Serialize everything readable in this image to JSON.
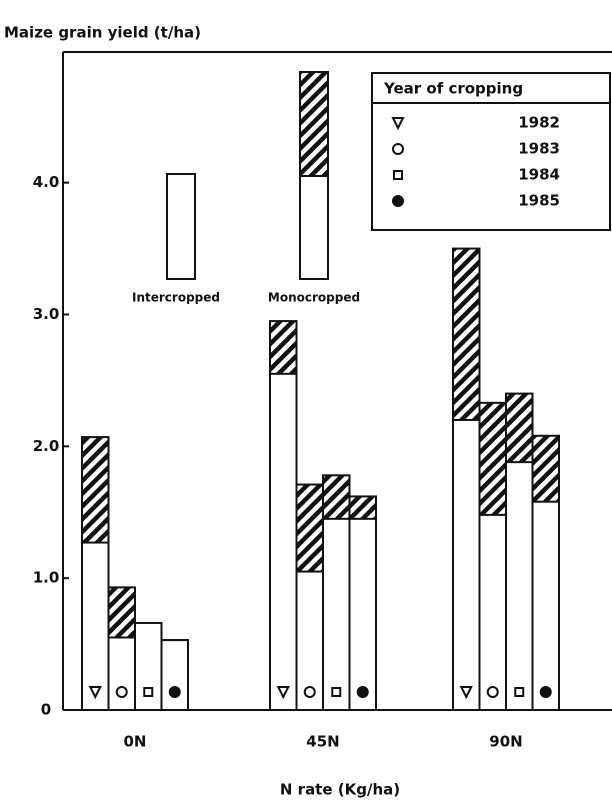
{
  "chart_data": {
    "type": "bar",
    "title": "Maize grain yield (t/ha)",
    "xlabel": "N rate (Kg/ha)",
    "categories": [
      "0N",
      "45N",
      "90N"
    ],
    "legend_title": "Year of cropping",
    "years": [
      "1982",
      "1983",
      "1984",
      "1985"
    ],
    "series": [
      {
        "name": "Intercropped",
        "color": "#ffffff",
        "values": [
          [
            1.27,
            0.55,
            0.66,
            0.53
          ],
          [
            2.55,
            1.05,
            1.45,
            1.45
          ],
          [
            2.2,
            1.48,
            1.88,
            1.58
          ]
        ]
      },
      {
        "name": "Monocropped",
        "color": "#111111",
        "values": [
          [
            2.07,
            0.93,
            0.66,
            0.53
          ],
          [
            2.95,
            1.71,
            1.78,
            1.62
          ],
          [
            3.5,
            2.33,
            2.4,
            2.08
          ]
        ]
      }
    ],
    "ylim": [
      0,
      4.9
    ],
    "yticks": [
      0,
      {
        "value": 1,
        "label": "1.0"
      },
      {
        "value": 2,
        "label": "2.0"
      },
      {
        "value": 3,
        "label": "3.0"
      },
      {
        "value": 4,
        "label": "4.0"
      }
    ]
  }
}
